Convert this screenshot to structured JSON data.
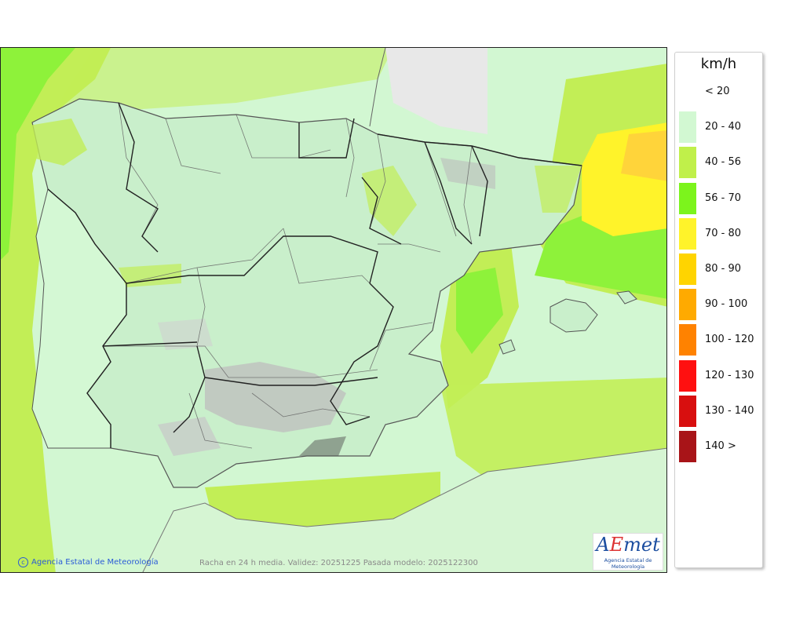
{
  "legend": {
    "title": "km/h",
    "items": [
      {
        "label": "< 20",
        "color": null
      },
      {
        "label": "20 - 40",
        "color": "#d2f8d2"
      },
      {
        "label": "40 - 56",
        "color": "#c0f04a"
      },
      {
        "label": "56 - 70",
        "color": "#7cf41c"
      },
      {
        "label": "70 - 80",
        "color": "#fff32a"
      },
      {
        "label": "80 - 90",
        "color": "#ffd400"
      },
      {
        "label": "90 - 100",
        "color": "#ffaa00"
      },
      {
        "label": "100 - 120",
        "color": "#ff8200"
      },
      {
        "label": "120 - 130",
        "color": "#ff1010"
      },
      {
        "label": "130 - 140",
        "color": "#d80f0f"
      },
      {
        "label": "140 >",
        "color": "#a81418"
      }
    ]
  },
  "map": {
    "credit": "Agencia Estatal de Meteorología",
    "caption": "Racha en 24 h media. Validez: 20251225 Pasada modelo: 2025122300"
  },
  "logo": {
    "mark_a": "A",
    "mark_b": "E",
    "mark_c": "met",
    "subtitle": "Agencia Estatal de Meteorología"
  }
}
